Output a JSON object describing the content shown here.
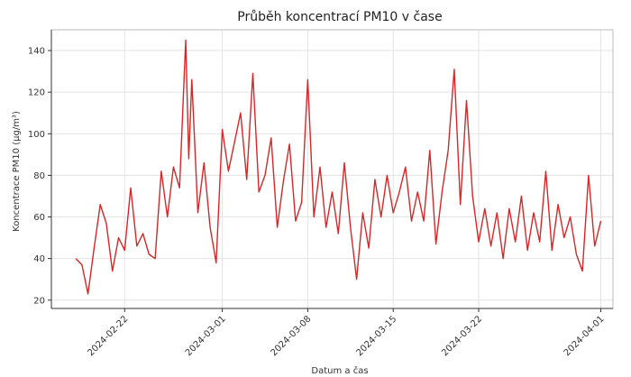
{
  "chart_data": {
    "type": "line",
    "title": "Průběh koncentrací PM10 v čase",
    "xlabel": "Datum a čas",
    "ylabel": "Koncentrace PM10 (µg/m³)",
    "xlim": [
      "2024-02-16",
      "2024-04-02"
    ],
    "ylim": [
      16,
      150
    ],
    "y_ticks": [
      20,
      40,
      60,
      80,
      100,
      120,
      140
    ],
    "x_ticks": [
      "2024-02-22",
      "2024-03-01",
      "2024-03-08",
      "2024-03-15",
      "2024-03-22",
      "2024-04-01"
    ],
    "grid": true,
    "series": [
      {
        "color": "#d62728",
        "points": [
          [
            "2024-02-18 00:00",
            40
          ],
          [
            "2024-02-18 12:00",
            37
          ],
          [
            "2024-02-19 00:00",
            23
          ],
          [
            "2024-02-19 12:00",
            45
          ],
          [
            "2024-02-20 00:00",
            66
          ],
          [
            "2024-02-20 12:00",
            57
          ],
          [
            "2024-02-21 00:00",
            34
          ],
          [
            "2024-02-21 12:00",
            50
          ],
          [
            "2024-02-22 00:00",
            44
          ],
          [
            "2024-02-22 12:00",
            74
          ],
          [
            "2024-02-23 00:00",
            46
          ],
          [
            "2024-02-23 12:00",
            52
          ],
          [
            "2024-02-24 00:00",
            42
          ],
          [
            "2024-02-24 12:00",
            40
          ],
          [
            "2024-02-25 00:00",
            82
          ],
          [
            "2024-02-25 12:00",
            60
          ],
          [
            "2024-02-26 00:00",
            84
          ],
          [
            "2024-02-26 12:00",
            74
          ],
          [
            "2024-02-27 00:00",
            145
          ],
          [
            "2024-02-27 06:00",
            88
          ],
          [
            "2024-02-27 12:00",
            126
          ],
          [
            "2024-02-28 00:00",
            62
          ],
          [
            "2024-02-28 12:00",
            86
          ],
          [
            "2024-02-29 00:00",
            55
          ],
          [
            "2024-02-29 12:00",
            38
          ],
          [
            "2024-03-01 00:00",
            102
          ],
          [
            "2024-03-01 12:00",
            82
          ],
          [
            "2024-03-02 00:00",
            96
          ],
          [
            "2024-03-02 12:00",
            110
          ],
          [
            "2024-03-03 00:00",
            78
          ],
          [
            "2024-03-03 12:00",
            129
          ],
          [
            "2024-03-04 00:00",
            72
          ],
          [
            "2024-03-04 12:00",
            80
          ],
          [
            "2024-03-05 00:00",
            98
          ],
          [
            "2024-03-05 12:00",
            55
          ],
          [
            "2024-03-06 00:00",
            77
          ],
          [
            "2024-03-06 12:00",
            95
          ],
          [
            "2024-03-07 00:00",
            58
          ],
          [
            "2024-03-07 12:00",
            67
          ],
          [
            "2024-03-08 00:00",
            126
          ],
          [
            "2024-03-08 12:00",
            60
          ],
          [
            "2024-03-09 00:00",
            84
          ],
          [
            "2024-03-09 12:00",
            55
          ],
          [
            "2024-03-10 00:00",
            72
          ],
          [
            "2024-03-10 12:00",
            52
          ],
          [
            "2024-03-11 00:00",
            86
          ],
          [
            "2024-03-11 12:00",
            55
          ],
          [
            "2024-03-12 00:00",
            30
          ],
          [
            "2024-03-12 12:00",
            62
          ],
          [
            "2024-03-13 00:00",
            45
          ],
          [
            "2024-03-13 12:00",
            78
          ],
          [
            "2024-03-14 00:00",
            60
          ],
          [
            "2024-03-14 12:00",
            80
          ],
          [
            "2024-03-15 00:00",
            62
          ],
          [
            "2024-03-15 12:00",
            72
          ],
          [
            "2024-03-16 00:00",
            84
          ],
          [
            "2024-03-16 12:00",
            58
          ],
          [
            "2024-03-17 00:00",
            72
          ],
          [
            "2024-03-17 12:00",
            58
          ],
          [
            "2024-03-18 00:00",
            92
          ],
          [
            "2024-03-18 12:00",
            47
          ],
          [
            "2024-03-19 00:00",
            72
          ],
          [
            "2024-03-19 12:00",
            92
          ],
          [
            "2024-03-20 00:00",
            131
          ],
          [
            "2024-03-20 12:00",
            66
          ],
          [
            "2024-03-21 00:00",
            116
          ],
          [
            "2024-03-21 12:00",
            70
          ],
          [
            "2024-03-22 00:00",
            48
          ],
          [
            "2024-03-22 12:00",
            64
          ],
          [
            "2024-03-23 00:00",
            46
          ],
          [
            "2024-03-23 12:00",
            62
          ],
          [
            "2024-03-24 00:00",
            40
          ],
          [
            "2024-03-24 12:00",
            64
          ],
          [
            "2024-03-25 00:00",
            48
          ],
          [
            "2024-03-25 12:00",
            70
          ],
          [
            "2024-03-26 00:00",
            44
          ],
          [
            "2024-03-26 12:00",
            62
          ],
          [
            "2024-03-27 00:00",
            48
          ],
          [
            "2024-03-27 12:00",
            82
          ],
          [
            "2024-03-28 00:00",
            44
          ],
          [
            "2024-03-28 12:00",
            66
          ],
          [
            "2024-03-29 00:00",
            50
          ],
          [
            "2024-03-29 12:00",
            60
          ],
          [
            "2024-03-30 00:00",
            42
          ],
          [
            "2024-03-30 12:00",
            34
          ],
          [
            "2024-03-31 00:00",
            80
          ],
          [
            "2024-03-31 12:00",
            46
          ],
          [
            "2024-04-01 00:00",
            58
          ]
        ]
      }
    ]
  }
}
